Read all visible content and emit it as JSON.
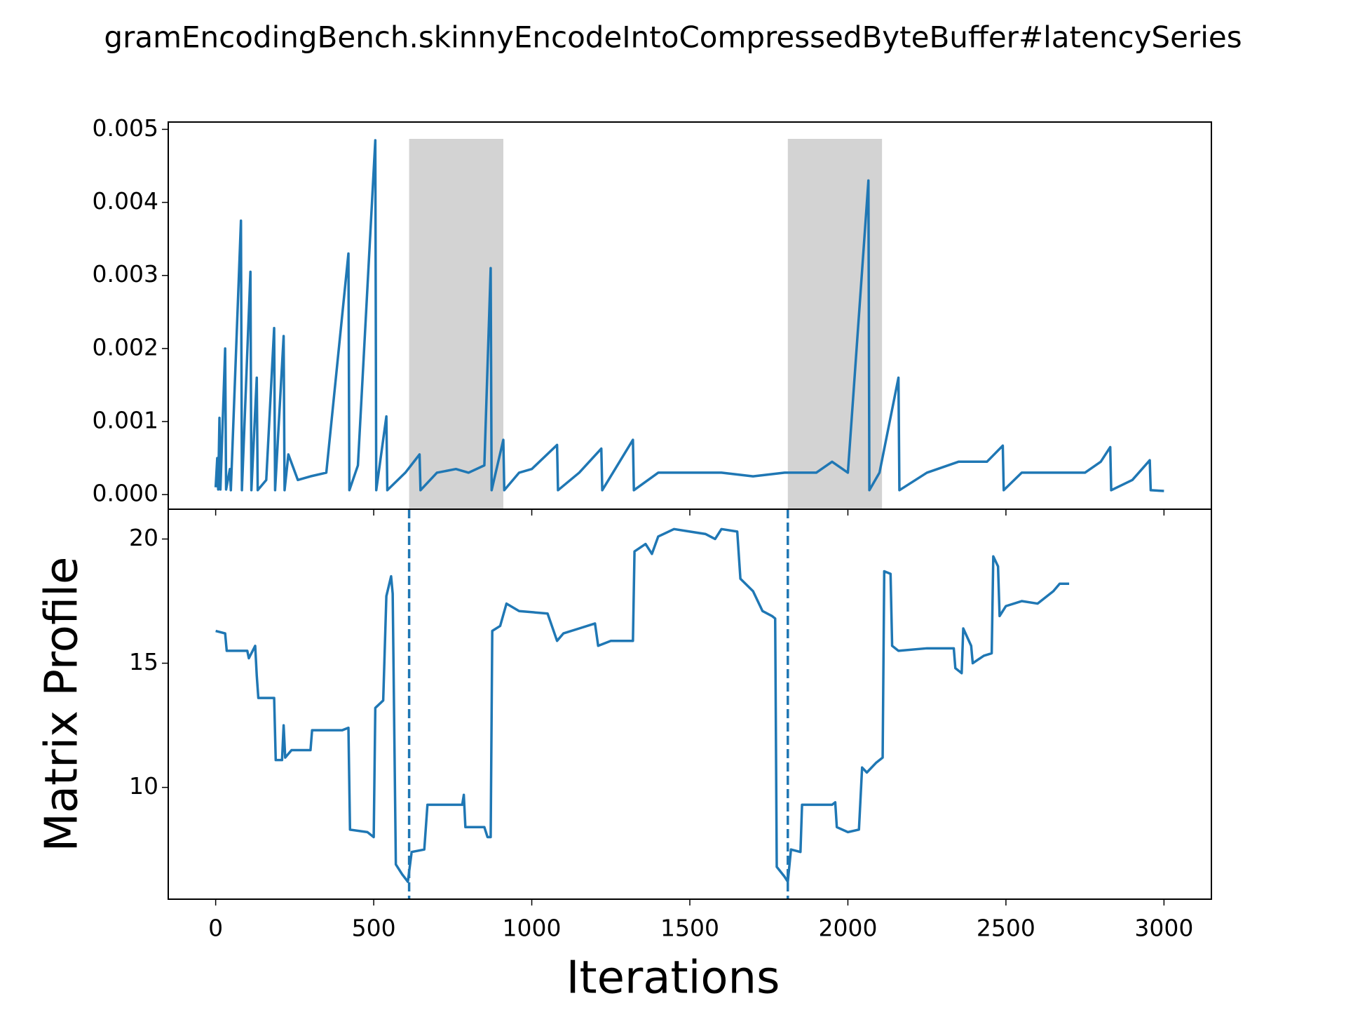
{
  "chart_data": [
    {
      "type": "line",
      "title": "gramEncodingBench.skinnyEncodeIntoCompressedByteBuffer#latencySeries",
      "xlim": [
        -150,
        3150
      ],
      "ylim": [
        -0.0002,
        0.0051
      ],
      "yticks": [
        {
          "value": 0,
          "label": "0.000"
        },
        0.001,
        0.002,
        0.003,
        0.004,
        0.005
      ],
      "shaded": [
        [
          612,
          910
        ],
        [
          1810,
          2108
        ]
      ],
      "shade_color": "#d3d3d3",
      "x": [
        0,
        5,
        8,
        12,
        15,
        30,
        33,
        45,
        48,
        80,
        83,
        110,
        113,
        130,
        133,
        160,
        185,
        188,
        215,
        218,
        230,
        260,
        300,
        350,
        420,
        423,
        450,
        505,
        508,
        540,
        543,
        600,
        645,
        648,
        700,
        760,
        800,
        850,
        870,
        873,
        910,
        913,
        960,
        1000,
        1080,
        1083,
        1150,
        1220,
        1223,
        1320,
        1323,
        1400,
        1500,
        1600,
        1700,
        1800,
        1900,
        1950,
        2000,
        2065,
        2068,
        2100,
        2160,
        2163,
        2250,
        2350,
        2400,
        2440,
        2490,
        2493,
        2550,
        2650,
        2750,
        2800,
        2830,
        2833,
        2900,
        2955,
        2958,
        3000
      ],
      "series": [
        {
          "color": "#1f77b4",
          "values": [
            0.0001,
            0.0005,
            7e-05,
            0.00105,
            7e-05,
            0.002,
            7e-05,
            0.00035,
            6e-05,
            0.00375,
            6e-05,
            0.00305,
            6e-05,
            0.0016,
            6e-05,
            0.0002,
            0.00228,
            6e-05,
            0.00217,
            6e-05,
            0.00055,
            0.0002,
            0.00025,
            0.0003,
            0.0033,
            6e-05,
            0.0004,
            0.00485,
            6e-05,
            0.00107,
            6e-05,
            0.0003,
            0.00055,
            6e-05,
            0.0003,
            0.00035,
            0.0003,
            0.0004,
            0.0031,
            6e-05,
            0.00075,
            6e-05,
            0.0003,
            0.00035,
            0.00068,
            6e-05,
            0.0003,
            0.00063,
            6e-05,
            0.00075,
            6e-05,
            0.0003,
            0.0003,
            0.0003,
            0.00025,
            0.0003,
            0.0003,
            0.00045,
            0.0003,
            0.0043,
            6e-05,
            0.0003,
            0.0016,
            6e-05,
            0.0003,
            0.00045,
            0.00045,
            0.00045,
            0.00067,
            6e-05,
            0.0003,
            0.0003,
            0.0003,
            0.00045,
            0.00065,
            6e-05,
            0.0002,
            0.00047,
            6e-05,
            5e-05
          ]
        }
      ]
    },
    {
      "type": "line",
      "xlabel": "Iterations",
      "ylabel": "Matrix Profile",
      "xlim": [
        -150,
        3150
      ],
      "ylim": [
        5.5,
        21.2
      ],
      "xticks": [
        0,
        500,
        1000,
        1500,
        2000,
        2500,
        3000
      ],
      "yticks": [
        10,
        15,
        20
      ],
      "vlines": [
        612,
        1810
      ],
      "x": [
        0,
        30,
        35,
        100,
        105,
        125,
        130,
        135,
        185,
        190,
        210,
        215,
        220,
        240,
        300,
        305,
        400,
        420,
        425,
        480,
        500,
        505,
        530,
        540,
        555,
        560,
        570,
        590,
        608,
        620,
        660,
        670,
        780,
        785,
        790,
        850,
        860,
        870,
        875,
        900,
        920,
        960,
        1050,
        1080,
        1100,
        1150,
        1200,
        1210,
        1250,
        1320,
        1325,
        1360,
        1380,
        1400,
        1450,
        1500,
        1550,
        1580,
        1600,
        1650,
        1660,
        1700,
        1730,
        1760,
        1770,
        1775,
        1800,
        1810,
        1820,
        1850,
        1855,
        1950,
        1960,
        1965,
        2000,
        2035,
        2045,
        2060,
        2090,
        2110,
        2115,
        2135,
        2140,
        2160,
        2250,
        2300,
        2335,
        2340,
        2360,
        2365,
        2390,
        2395,
        2430,
        2455,
        2460,
        2475,
        2480,
        2500,
        2550,
        2600,
        2650,
        2670,
        2700
      ],
      "series": [
        {
          "color": "#1f77b4",
          "values": [
            16.3,
            16.2,
            15.5,
            15.5,
            15.2,
            15.7,
            14.5,
            13.6,
            13.6,
            11.1,
            11.1,
            12.5,
            11.2,
            11.5,
            11.5,
            12.3,
            12.3,
            12.4,
            8.3,
            8.2,
            8.0,
            13.2,
            13.5,
            17.7,
            18.5,
            17.8,
            6.9,
            6.5,
            6.2,
            7.4,
            7.5,
            9.3,
            9.3,
            9.7,
            8.4,
            8.4,
            8.0,
            8.0,
            16.3,
            16.5,
            17.4,
            17.1,
            17.0,
            15.9,
            16.2,
            16.4,
            16.6,
            15.7,
            15.9,
            15.9,
            19.5,
            19.8,
            19.4,
            20.1,
            20.4,
            20.3,
            20.2,
            20.0,
            20.4,
            20.3,
            18.4,
            17.9,
            17.1,
            16.9,
            16.8,
            6.8,
            6.4,
            6.2,
            7.5,
            7.4,
            9.3,
            9.3,
            9.4,
            8.4,
            8.2,
            8.3,
            10.8,
            10.6,
            11.0,
            11.2,
            18.7,
            18.6,
            15.7,
            15.5,
            15.6,
            15.6,
            15.6,
            14.8,
            14.6,
            16.4,
            15.7,
            15.0,
            15.3,
            15.4,
            19.3,
            18.9,
            16.9,
            17.3,
            17.5,
            17.4,
            17.9,
            18.2,
            18.2
          ]
        }
      ]
    }
  ]
}
